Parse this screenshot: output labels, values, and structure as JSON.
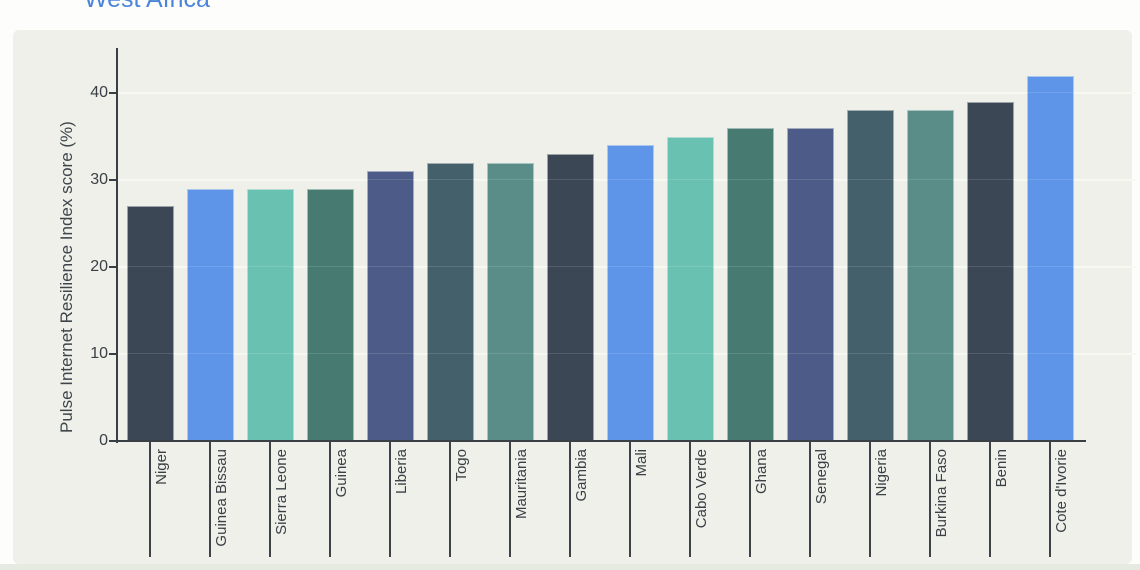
{
  "title": "West Africa",
  "colors": {
    "title_blue": "#4b85d9",
    "panel_background": "#eef0e9",
    "page_background": "#fdfdfb",
    "axis": "#383f45",
    "tick_text": "#3a4046",
    "gridline": "#f6f8f2",
    "bottom_strip": "#e7eae1"
  },
  "chart_data": {
    "type": "bar",
    "title": "West Africa",
    "xlabel": "",
    "ylabel": "Pulse Internet Resilience Index score (%)",
    "categories": [
      "Niger",
      "Guinea Bissau",
      "Sierra Leone",
      "Guinea",
      "Liberia",
      "Togo",
      "Mauritania",
      "Gambia",
      "Mali",
      "Cabo Verde",
      "Ghana",
      "Senegal",
      "Nigeria",
      "Burkina Faso",
      "Benin",
      "Cote d'Ivorie"
    ],
    "values": [
      27,
      29,
      29,
      29,
      31,
      32,
      32,
      33,
      34,
      35,
      36,
      36,
      38,
      38,
      39,
      42
    ],
    "bar_colors": [
      "#3b4754",
      "#5e95e8",
      "#69c1b2",
      "#477a71",
      "#4c5b87",
      "#44606b",
      "#5a8d87",
      "#3b4754",
      "#5e95e8",
      "#69c1b2",
      "#477a71",
      "#4c5b87",
      "#44606b",
      "#5a8d87",
      "#3b4754",
      "#5e95e8"
    ],
    "palette_cycle": [
      "#3b4754",
      "#5e95e8",
      "#69c1b2",
      "#477a71",
      "#4c5b87",
      "#44606b",
      "#5a8d87"
    ],
    "yticks": [
      0,
      10,
      20,
      30,
      40
    ],
    "ylim": [
      0,
      45
    ],
    "grid": true,
    "legend": "none",
    "bar_label_rotation": -90
  }
}
